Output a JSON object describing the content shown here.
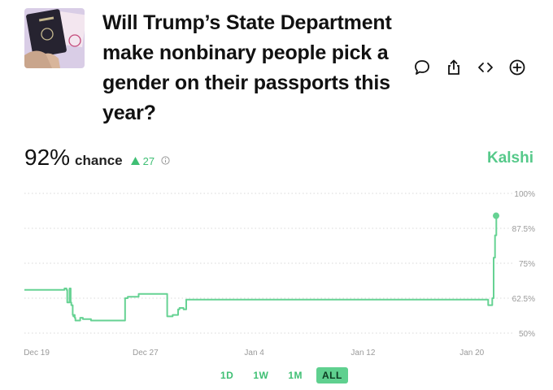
{
  "question": {
    "title": "Will Trump’s State Department make nonbinary people pick a gender on their passports this year?"
  },
  "stats": {
    "percent": "92%",
    "chance_label": "chance",
    "delta": "27",
    "delta_direction": "up"
  },
  "source": {
    "name": "Kalshi"
  },
  "actions": [
    {
      "icon": "comment-icon"
    },
    {
      "icon": "share-icon"
    },
    {
      "icon": "embed-code-icon"
    },
    {
      "icon": "add-icon"
    }
  ],
  "ranges": [
    {
      "label": "1D",
      "active": false
    },
    {
      "label": "1W",
      "active": false
    },
    {
      "label": "1M",
      "active": false
    },
    {
      "label": "ALL",
      "active": true
    }
  ],
  "colors": {
    "accent": "#56c98a",
    "line": "#66d293",
    "grid": "#d8d8d8"
  },
  "chart_data": {
    "type": "line",
    "title": "",
    "xlabel": "",
    "ylabel": "",
    "x_ticks": [
      "Dec 19",
      "Dec 27",
      "Jan 4",
      "Jan 12",
      "Jan 20"
    ],
    "y_ticks": [
      "100%",
      "87.5%",
      "75%",
      "62.5%",
      "50%"
    ],
    "ylim": [
      50,
      100
    ],
    "xlim": [
      18.1,
      21.5
    ],
    "grid": true,
    "series": [
      {
        "values_x": [
          18.1,
          21.0,
          21.05,
          21.2,
          21.25,
          21.4,
          21.42,
          21.5,
          21.55,
          21.6,
          21.65,
          21.7,
          21.75,
          21.8,
          21.85,
          22.2,
          22.4,
          23.0,
          24.0,
          24.8,
          25.4,
          25.5,
          25.7,
          25.9,
          26.1,
          26.3,
          26.5,
          27.3,
          27.4,
          27.45,
          27.8,
          28.5,
          28.6,
          29.0,
          29.4,
          29.5,
          29.8,
          30.0,
          31.0,
          35.0,
          40.0,
          45.0,
          50.0,
          51.7,
          52.2,
          52.3,
          52.5,
          52.6,
          52.7,
          52.8,
          52.9
        ],
        "values_y": [
          65.5,
          65.5,
          66,
          65.5,
          61,
          61,
          66,
          61,
          60,
          60,
          56.5,
          56,
          56.5,
          55.5,
          54.5,
          55.5,
          55,
          54.5,
          54.5,
          54.5,
          54.5,
          62.5,
          63,
          63,
          63,
          63,
          64,
          64,
          64,
          64,
          64,
          64,
          56,
          56.5,
          58.5,
          59,
          58.5,
          62,
          62,
          62,
          62,
          62,
          62,
          62,
          60,
          60,
          62.5,
          77,
          85,
          92,
          92
        ]
      }
    ]
  }
}
